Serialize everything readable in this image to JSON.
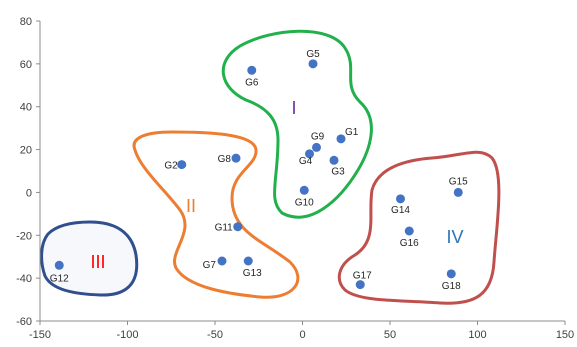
{
  "chart_data": {
    "type": "scatter",
    "xlim": [
      -150,
      150
    ],
    "ylim": [
      -60,
      80
    ],
    "x_ticks": [
      -150,
      -100,
      -50,
      0,
      50,
      100,
      150
    ],
    "y_ticks": [
      -60,
      -40,
      -20,
      0,
      20,
      40,
      60,
      80
    ],
    "grid": false,
    "marker_color": "#4472C4",
    "points": [
      {
        "label": "G1",
        "x": 22,
        "y": 25
      },
      {
        "label": "G2",
        "x": -69,
        "y": 13
      },
      {
        "label": "G3",
        "x": 18,
        "y": 15
      },
      {
        "label": "G4",
        "x": 4,
        "y": 18
      },
      {
        "label": "G5",
        "x": 6,
        "y": 60
      },
      {
        "label": "G6",
        "x": -29,
        "y": 57
      },
      {
        "label": "G7",
        "x": -46,
        "y": -32
      },
      {
        "label": "G8",
        "x": -38,
        "y": 16
      },
      {
        "label": "G9",
        "x": 8,
        "y": 21
      },
      {
        "label": "G10",
        "x": 1,
        "y": 1
      },
      {
        "label": "G11",
        "x": -37,
        "y": -16
      },
      {
        "label": "G12",
        "x": -139,
        "y": -34
      },
      {
        "label": "G13",
        "x": -31,
        "y": -32
      },
      {
        "label": "G14",
        "x": 56,
        "y": -3
      },
      {
        "label": "G15",
        "x": 89,
        "y": 0
      },
      {
        "label": "G16",
        "x": 61,
        "y": -18
      },
      {
        "label": "G17",
        "x": 33,
        "y": -43
      },
      {
        "label": "G18",
        "x": 85,
        "y": -38
      }
    ],
    "groups": [
      {
        "label": "I",
        "color": "#7030A0",
        "outline": "#22B04C",
        "members": [
          "G1",
          "G3",
          "G4",
          "G5",
          "G6",
          "G9",
          "G10"
        ]
      },
      {
        "label": "II",
        "color": "#ED7D31",
        "outline": "#ED7D31",
        "members": [
          "G2",
          "G7",
          "G8",
          "G11",
          "G13"
        ]
      },
      {
        "label": "III",
        "color": "#FF0000",
        "outline": "#2F4F8F",
        "members": [
          "G12"
        ]
      },
      {
        "label": "IV",
        "color": "#2E75B6",
        "outline": "#C0504D",
        "members": [
          "G14",
          "G15",
          "G16",
          "G17",
          "G18"
        ]
      }
    ]
  }
}
